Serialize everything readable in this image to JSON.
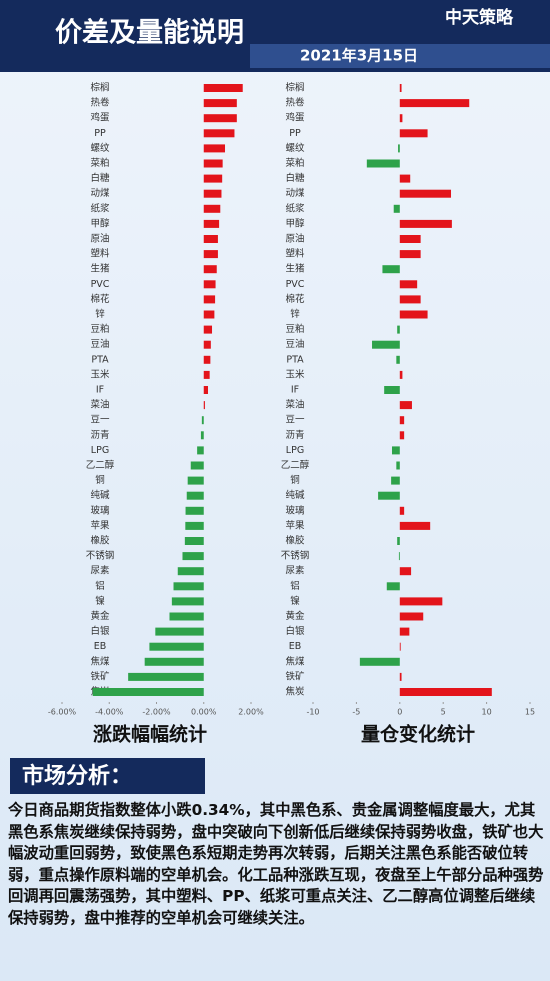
{
  "header": {
    "title": "价差及量能说明",
    "date": "2021年3月15日",
    "logo": "中天策略"
  },
  "chart_data": [
    {
      "type": "bar",
      "orientation": "horizontal",
      "title": "涨跌幅幅统计",
      "categories": [
        "棕榈",
        "热卷",
        "鸡蛋",
        "PP",
        "螺纹",
        "菜粕",
        "白糖",
        "动煤",
        "纸浆",
        "甲醇",
        "原油",
        "塑料",
        "生猪",
        "PVC",
        "棉花",
        "锌",
        "豆粕",
        "豆油",
        "PTA",
        "玉米",
        "IF",
        "菜油",
        "豆一",
        "沥青",
        "LPG",
        "乙二醇",
        "铜",
        "纯碱",
        "玻璃",
        "苹果",
        "橡胶",
        "不锈钢",
        "尿素",
        "铝",
        "镍",
        "黄金",
        "白银",
        "EB",
        "焦煤",
        "铁矿",
        "焦炭"
      ],
      "values": [
        1.65,
        1.4,
        1.4,
        1.3,
        0.9,
        0.8,
        0.78,
        0.75,
        0.7,
        0.65,
        0.6,
        0.6,
        0.55,
        0.5,
        0.48,
        0.45,
        0.35,
        0.3,
        0.28,
        0.25,
        0.18,
        0.05,
        -0.08,
        -0.12,
        -0.28,
        -0.55,
        -0.68,
        -0.72,
        -0.77,
        -0.78,
        -0.8,
        -0.9,
        -1.1,
        -1.28,
        -1.35,
        -1.45,
        -2.05,
        -2.3,
        -2.5,
        -3.2,
        -4.7
      ],
      "xlim": [
        -6,
        2
      ],
      "xticks": [
        {
          "value": -6,
          "label": "-6.00%"
        },
        {
          "value": -4,
          "label": "-4.00%"
        },
        {
          "value": -2,
          "label": "-2.00%"
        },
        {
          "value": 0,
          "label": "0.00%"
        },
        {
          "value": 2,
          "label": "2.00%"
        }
      ],
      "positive_color": "#e3141b",
      "negative_color": "#2ea24a"
    },
    {
      "type": "bar",
      "orientation": "horizontal",
      "title": "量仓变化统计",
      "categories": [
        "棕榈",
        "热卷",
        "鸡蛋",
        "PP",
        "螺纹",
        "菜粕",
        "白糖",
        "动煤",
        "纸浆",
        "甲醇",
        "原油",
        "塑料",
        "生猪",
        "PVC",
        "棉花",
        "锌",
        "豆粕",
        "豆油",
        "PTA",
        "玉米",
        "IF",
        "菜油",
        "豆一",
        "沥青",
        "LPG",
        "乙二醇",
        "铜",
        "纯碱",
        "玻璃",
        "苹果",
        "橡胶",
        "不锈钢",
        "尿素",
        "铝",
        "镍",
        "黄金",
        "白银",
        "EB",
        "焦煤",
        "铁矿",
        "焦炭"
      ],
      "values": [
        0.2,
        8,
        0.3,
        3.2,
        -0.2,
        -3.8,
        1.2,
        5.9,
        -0.7,
        6,
        2.4,
        2.4,
        -2,
        2,
        2.4,
        3.2,
        -0.3,
        -3.2,
        -0.4,
        0.3,
        -1.8,
        1.4,
        0.5,
        0.5,
        -0.9,
        -0.4,
        -1,
        -2.5,
        0.5,
        3.5,
        -0.3,
        -0.1,
        1.3,
        -1.5,
        4.9,
        2.7,
        1.1,
        0.1,
        -4.6,
        0.2,
        10.6
      ],
      "xlim": [
        -10,
        15
      ],
      "xticks": [
        -10,
        -5,
        0,
        5,
        10,
        15
      ],
      "positive_color": "#e3141b",
      "negative_color": "#2ea24a"
    }
  ],
  "analysis": {
    "heading": "市场分析：",
    "text": "今日商品期货指数整体小跌0.34%，其中黑色系、贵金属调整幅度最大，尤其黑色系焦炭继续保持弱势，盘中突破向下创新低后继续保持弱势收盘，铁矿也大幅波动重回弱势，致使黑色系短期走势再次转弱，后期关注黑色系能否破位转弱，重点操作原料端的空单机会。化工品种涨跌互现，夜盘至上午部分品种强势回调再回震荡强势，其中塑料、PP、纸浆可重点关注、乙二醇高位调整后继续保持弱势，盘中推荐的空单机会可继续关注。"
  }
}
